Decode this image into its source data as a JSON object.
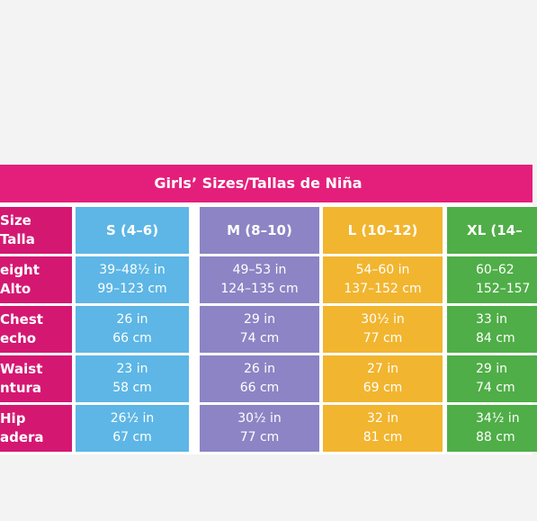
{
  "title": "Girls’ Sizes/Tallas de Niña",
  "colors": {
    "title_bg": "#e41f7b",
    "label_bg": "#d41872",
    "s": "#5db6e5",
    "m": "#8c84c4",
    "l": "#f2b52f",
    "xl": "#4fae47"
  },
  "columns": [
    {
      "key": "s",
      "label": "S (4–6)"
    },
    {
      "key": "m",
      "label": "M (8–10)"
    },
    {
      "key": "l",
      "label": "L (10–12)"
    },
    {
      "key": "xl",
      "label": "XL (14–"
    }
  ],
  "rows": [
    {
      "label": [
        "eight",
        "Alto"
      ],
      "values": [
        [
          "39–48½ in",
          "99–123 cm"
        ],
        [
          "49–53 in",
          "124–135 cm"
        ],
        [
          "54–60 in",
          "137–152 cm"
        ],
        [
          "60–62",
          "152–157"
        ]
      ]
    },
    {
      "label": [
        "Chest",
        "echo"
      ],
      "values": [
        [
          "26 in",
          "66 cm"
        ],
        [
          "29 in",
          "74 cm"
        ],
        [
          "30½ in",
          "77 cm"
        ],
        [
          "33 in",
          "84 cm"
        ]
      ]
    },
    {
      "label": [
        "Waist",
        "ntura"
      ],
      "values": [
        [
          "23 in",
          "58 cm"
        ],
        [
          "26 in",
          "66 cm"
        ],
        [
          "27 in",
          "69 cm"
        ],
        [
          "29 in",
          "74 cm"
        ]
      ]
    },
    {
      "label": [
        "Hip",
        "adera"
      ],
      "values": [
        [
          "26½ in",
          "67 cm"
        ],
        [
          "30½ in",
          "77 cm"
        ],
        [
          "32 in",
          "81 cm"
        ],
        [
          "34½ in",
          "88 cm"
        ]
      ]
    }
  ],
  "header_label": [
    "Size",
    "Talla"
  ]
}
